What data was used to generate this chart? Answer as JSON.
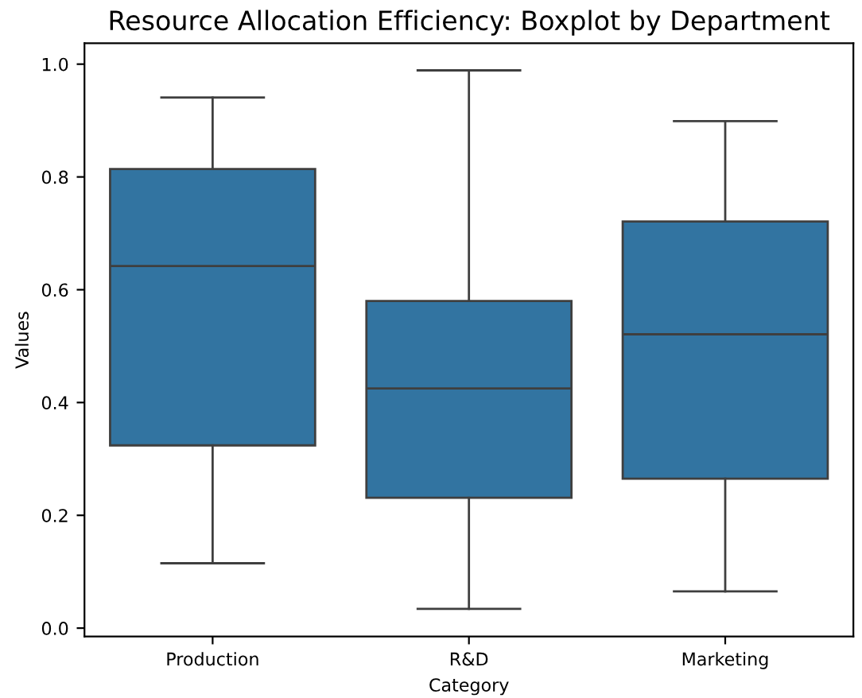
{
  "chart_data": {
    "type": "box",
    "title": "Resource Allocation Efficiency: Boxplot by Department",
    "xlabel": "Category",
    "ylabel": "Values",
    "categories": [
      "Production",
      "R&D",
      "Marketing"
    ],
    "color": "#3274a1",
    "boxes": [
      {
        "low": 0.115,
        "q1": 0.324,
        "median": 0.642,
        "q3": 0.814,
        "high": 0.941
      },
      {
        "low": 0.034,
        "q1": 0.231,
        "median": 0.425,
        "q3": 0.58,
        "high": 0.989
      },
      {
        "low": 0.065,
        "q1": 0.265,
        "median": 0.521,
        "q3": 0.721,
        "high": 0.899
      }
    ],
    "ylim": [
      -0.015,
      1.037
    ],
    "yticks": [
      {
        "value": 0,
        "label": "0.0"
      },
      {
        "value": 0.2,
        "label": "0.2"
      },
      {
        "value": 0.4,
        "label": "0.4"
      },
      {
        "value": 0.6,
        "label": "0.6"
      },
      {
        "value": 0.8,
        "label": "0.8"
      },
      {
        "value": 1.0,
        "label": "1.0"
      }
    ]
  }
}
